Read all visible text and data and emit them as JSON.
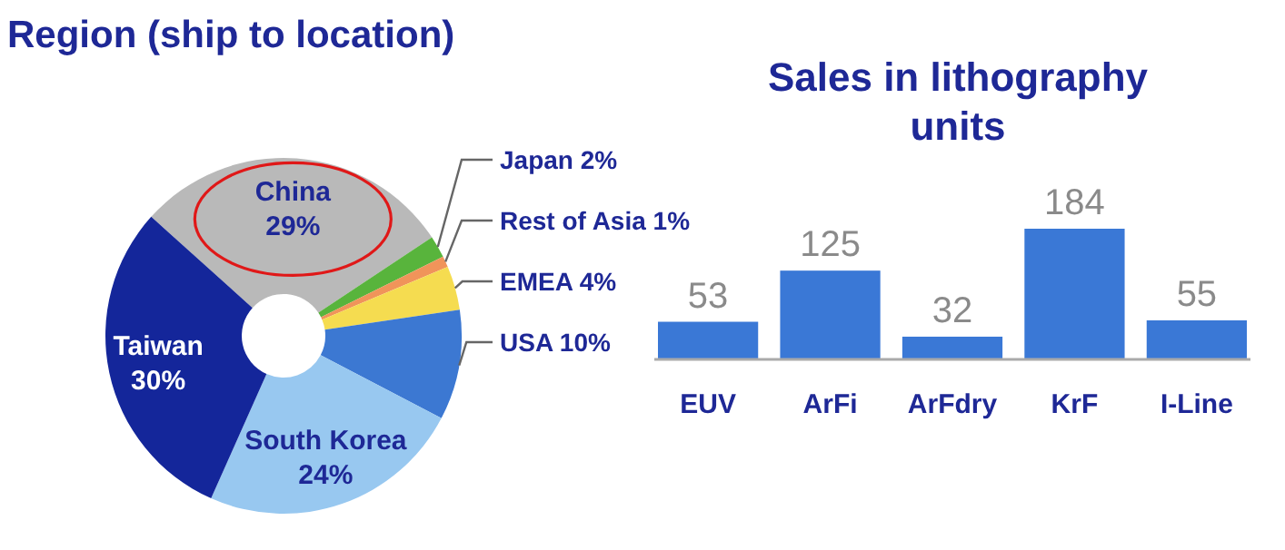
{
  "chart_data": [
    {
      "type": "donut",
      "title": "Region (ship to location)",
      "categories": [
        "China",
        "Japan",
        "Rest of Asia",
        "EMEA",
        "USA",
        "South Korea",
        "Taiwan"
      ],
      "values": [
        29,
        2,
        1,
        4,
        10,
        24,
        30
      ],
      "value_labels": [
        "29%",
        "2%",
        "1%",
        "4%",
        "10%",
        "24%",
        "30%"
      ],
      "colors": [
        "#b9b9b9",
        "#58b43c",
        "#f0945a",
        "#f5dc50",
        "#3c78d2",
        "#98c8f0",
        "#14269a"
      ]
    },
    {
      "type": "bar",
      "title": "Sales in lithography units",
      "categories": [
        "EUV",
        "ArFi",
        "ArFdry",
        "KrF",
        "I-Line"
      ],
      "values": [
        53,
        125,
        32,
        184,
        55
      ],
      "color": "#3a78d6",
      "data_labels": true
    }
  ]
}
